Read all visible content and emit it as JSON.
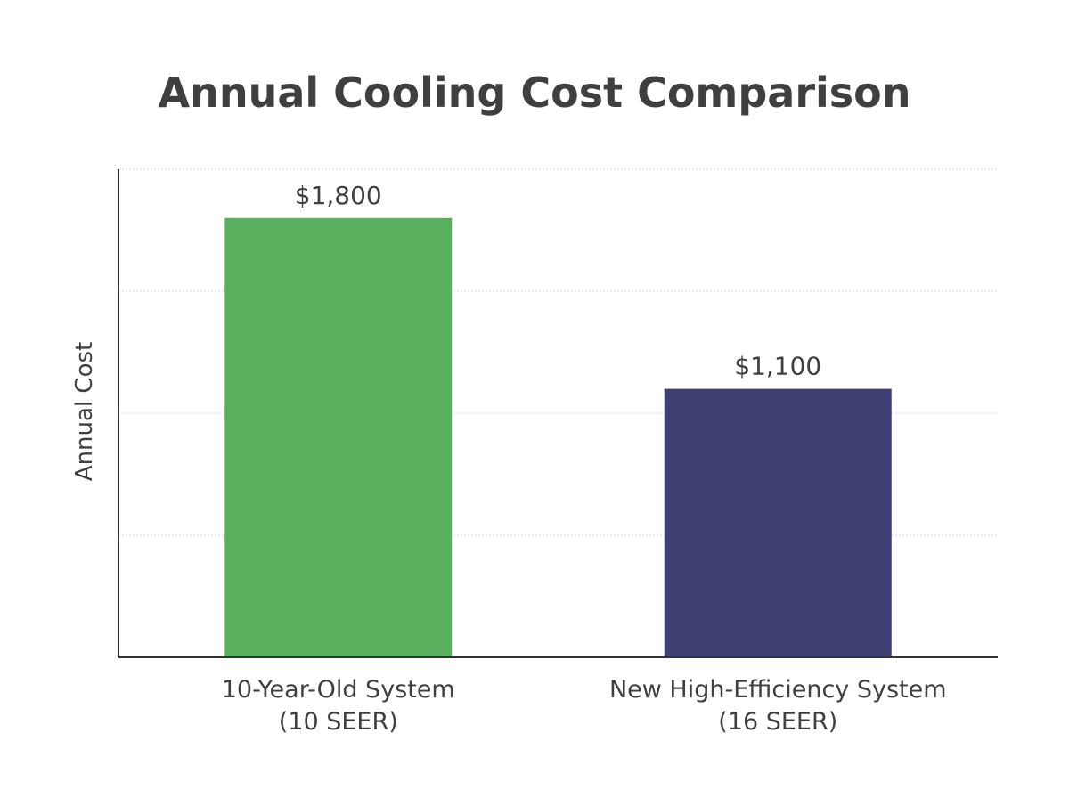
{
  "chart_data": {
    "type": "bar",
    "title": "Annual Cooling Cost Comparison",
    "xlabel": "",
    "ylabel": "Annual Cost",
    "ylim": [
      0,
      2000
    ],
    "gridlines": [
      0,
      500,
      1000,
      1500,
      2000
    ],
    "grid": true,
    "legend": "none",
    "categories": [
      [
        "10-Year-Old System",
        "(10 SEER)"
      ],
      [
        "New High-Efficiency System",
        "(16 SEER)"
      ]
    ],
    "values": [
      1800,
      1100
    ],
    "value_labels": [
      "$1,800",
      "$1,100"
    ],
    "colors": [
      "#5aaf5e",
      "#3f4072"
    ]
  }
}
